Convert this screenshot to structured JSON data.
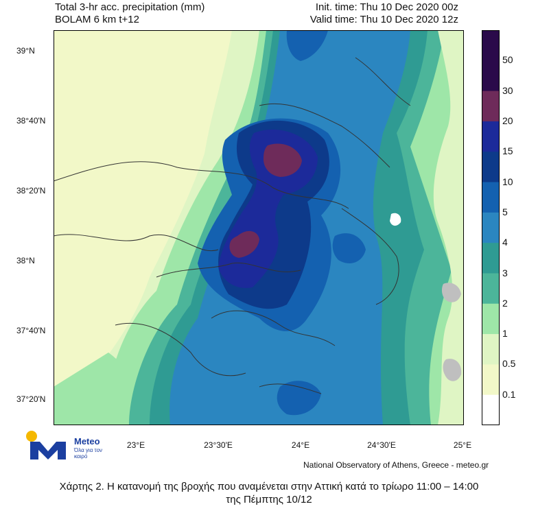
{
  "header": {
    "title_line1": "Total 3-hr acc. precipitation (mm)",
    "title_line2": "BOLAM 6 km t+12",
    "init_time": "Init. time: Thu 10 Dec 2020 00z",
    "valid_time": "Valid time: Thu 10 Dec 2020 12z"
  },
  "axes": {
    "lat_labels": [
      "39°N",
      "38°40'N",
      "38°20'N",
      "38°N",
      "37°40'N",
      "37°20'N"
    ],
    "lon_labels": [
      "23°E",
      "23°30'E",
      "24°E",
      "24°30'E",
      "25°E"
    ]
  },
  "colorbar": {
    "labels": [
      "50",
      "30",
      "20",
      "15",
      "10",
      "5",
      "4",
      "3",
      "2",
      "1",
      "0.5",
      "0.1"
    ],
    "colors": [
      "#2a0a4a",
      "#6e2b5a",
      "#1c2a9a",
      "#0d3a8a",
      "#1461b0",
      "#2b86c0",
      "#2f9b93",
      "#4cb59a",
      "#9ee6a8",
      "#dff5c4",
      "#f2f8c8",
      "#ffffff"
    ]
  },
  "credit": "National Observatory of Athens, Greece - meteo.gr",
  "logo": {
    "name": "Meteo",
    "tagline": "Όλα για τον καιρό"
  },
  "caption": {
    "line1": "Χάρτης 2. Η κατανομή της βροχής που αναμένεται στην Αττική κατά το τρίωρο 11:00 – 14:00",
    "line2": "της Πέμπτης 10/12"
  }
}
